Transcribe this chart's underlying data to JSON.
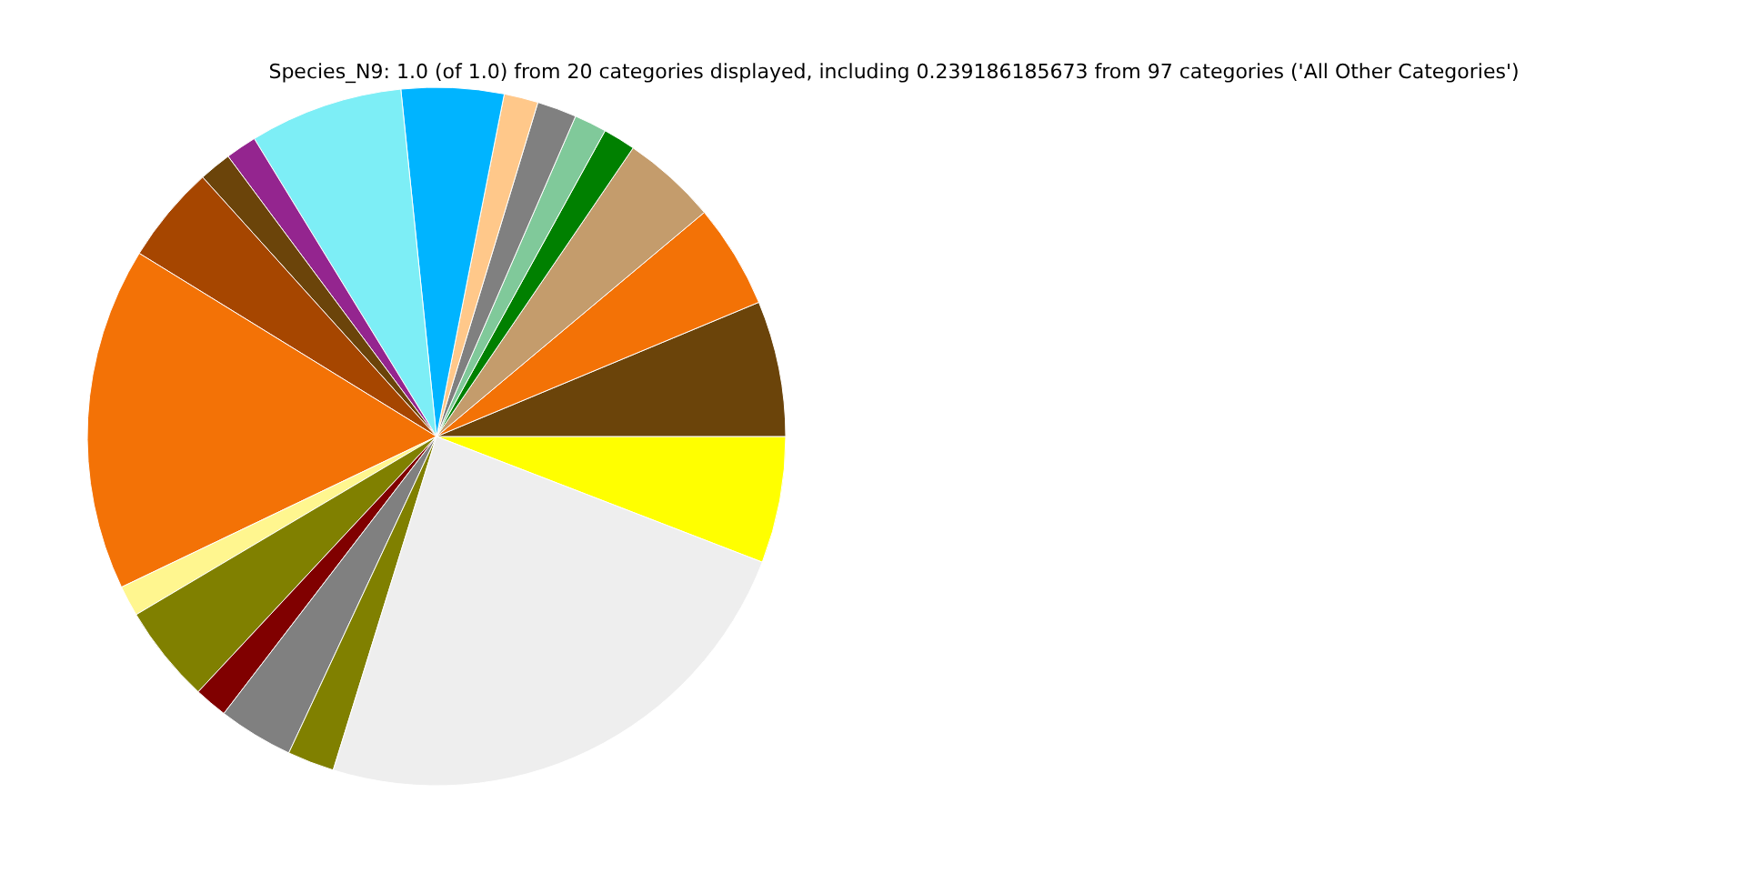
{
  "chart_data": {
    "type": "pie",
    "title": "Species_N9: 1.0 (of 1.0) from 20 categories displayed, including 0.239186185673 from 97 categories ('All Other Categories')",
    "categories": [
      null,
      null,
      null,
      null,
      null,
      null,
      null,
      null,
      null,
      null,
      null,
      null,
      null,
      null,
      null,
      null,
      null,
      null,
      null,
      null
    ],
    "values": [
      5.86,
      6.28,
      4.81,
      4.39,
      1.5,
      1.5,
      1.83,
      1.58,
      4.74,
      7.11,
      1.44,
      1.5,
      4.53,
      15.89,
      1.42,
      4.53,
      1.53,
      3.47,
      2.17,
      23.92
    ],
    "colors": [
      "#ffff00",
      "#6b440a",
      "#f37206",
      "#c49c6c",
      "#008000",
      "#80c99a",
      "#808080",
      "#ffc88a",
      "#00b4ff",
      "#7deef6",
      "#94258f",
      "#6b440a",
      "#a64600",
      "#f37206",
      "#fff68f",
      "#808000",
      "#800000",
      "#808080",
      "#808000",
      "#eeeeee"
    ],
    "legend": false
  }
}
